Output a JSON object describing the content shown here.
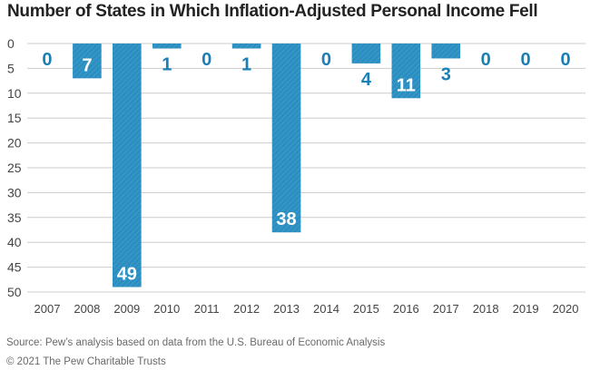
{
  "chart_data": {
    "type": "bar",
    "orientation": "vertical-downward",
    "title": "Number of States in Which Inflation-Adjusted Personal Income Fell",
    "categories": [
      "2007",
      "2008",
      "2009",
      "2010",
      "2011",
      "2012",
      "2013",
      "2014",
      "2015",
      "2016",
      "2017",
      "2018",
      "2019",
      "2020"
    ],
    "values": [
      0,
      7,
      49,
      1,
      0,
      1,
      38,
      0,
      4,
      11,
      3,
      0,
      0,
      0
    ],
    "yticks": [
      0,
      5,
      10,
      15,
      20,
      25,
      30,
      35,
      40,
      45,
      50
    ],
    "ylim": [
      0,
      50
    ],
    "xlabel": "",
    "ylabel": "",
    "grid": true,
    "bar_color": "#2a8ec0",
    "label_color": "#1a7fb5",
    "grid_color": "#cccccc"
  },
  "footer": {
    "source": "Source: Pew’s analysis based on data from the U.S. Bureau of Economic Analysis",
    "copyright": "© 2021 The Pew Charitable Trusts"
  }
}
